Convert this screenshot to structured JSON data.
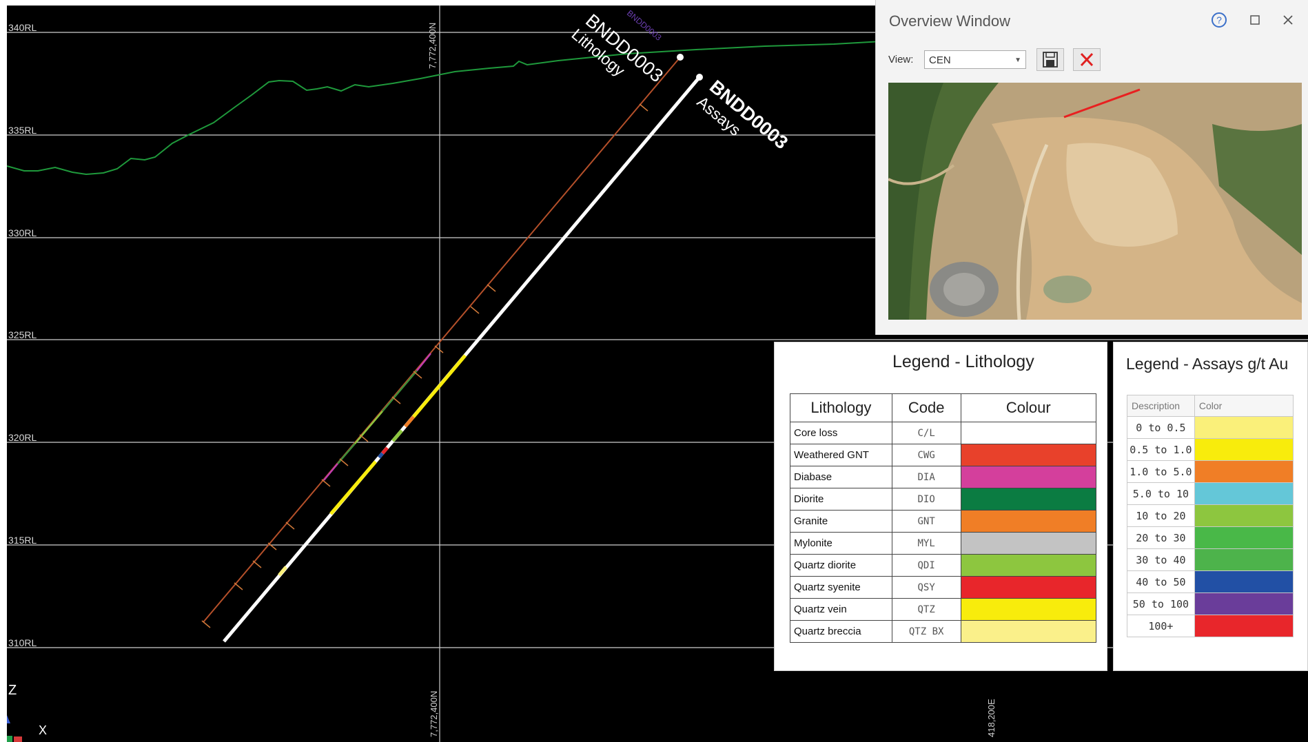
{
  "section": {
    "rl_labels": [
      "340RL",
      "335RL",
      "330RL",
      "325RL",
      "320RL",
      "315RL",
      "310RL"
    ],
    "northing_top": "7,772,400N",
    "northing_bottom": "7,772,400N",
    "easting": "418,200E",
    "axis_z": "Z",
    "axis_x": "X"
  },
  "drillholes": {
    "lithology": {
      "id": "BNDD0003",
      "caption": "Lithology",
      "small_label": "BNDD0003"
    },
    "assays": {
      "id": "BNDD0003",
      "caption": "Assays"
    }
  },
  "overview": {
    "title": "Overview Window",
    "help_icon": "question-icon",
    "maximize_icon": "maximize-icon",
    "close_icon": "close-icon",
    "view_label": "View:",
    "view_value": "CEN",
    "save_icon": "save-icon",
    "cancel_icon": "cancel-icon"
  },
  "legend_lithology": {
    "title": "Legend - Lithology",
    "headers": [
      "Lithology",
      "Code",
      "Colour"
    ],
    "rows": [
      {
        "name": "Core loss",
        "code": "C/L",
        "color": "#ffffff"
      },
      {
        "name": "Weathered GNT",
        "code": "CWG",
        "color": "#e8412b"
      },
      {
        "name": "Diabase",
        "code": "DIA",
        "color": "#d43f9c"
      },
      {
        "name": "Diorite",
        "code": "DIO",
        "color": "#0b7c42"
      },
      {
        "name": "Granite",
        "code": "GNT",
        "color": "#f07e26"
      },
      {
        "name": "Mylonite",
        "code": "MYL",
        "color": "#c3c3c3"
      },
      {
        "name": "Quartz diorite",
        "code": "QDI",
        "color": "#8dc63f"
      },
      {
        "name": "Quartz syenite",
        "code": "QSY",
        "color": "#e8262b"
      },
      {
        "name": "Quartz vein",
        "code": "QTZ",
        "color": "#f8ec0c"
      },
      {
        "name": "Quartz breccia",
        "code": "QTZ BX",
        "color": "#faf08a"
      }
    ]
  },
  "legend_assays": {
    "title": "Legend - Assays g/t Au",
    "headers": [
      "Description",
      "Color"
    ],
    "rows": [
      {
        "range": "0 to 0.5",
        "color": "#faf07a"
      },
      {
        "range": "0.5 to 1.0",
        "color": "#f8ec0c"
      },
      {
        "range": "1.0 to 5.0",
        "color": "#f07e26"
      },
      {
        "range": "5.0 to 10",
        "color": "#64c7d8"
      },
      {
        "range": "10 to 20",
        "color": "#8dc63f"
      },
      {
        "range": "20 to 30",
        "color": "#49b848"
      },
      {
        "range": "30 to 40",
        "color": "#4db34b"
      },
      {
        "range": "40 to 50",
        "color": "#2250a5"
      },
      {
        "range": "50 to 100",
        "color": "#6a3d9a"
      },
      {
        "range": "100+",
        "color": "#e8262b"
      }
    ]
  },
  "colors": {
    "topography": "#1f9a3c",
    "grid": "#d0d0d0",
    "lith_trace": "#b5502a"
  }
}
